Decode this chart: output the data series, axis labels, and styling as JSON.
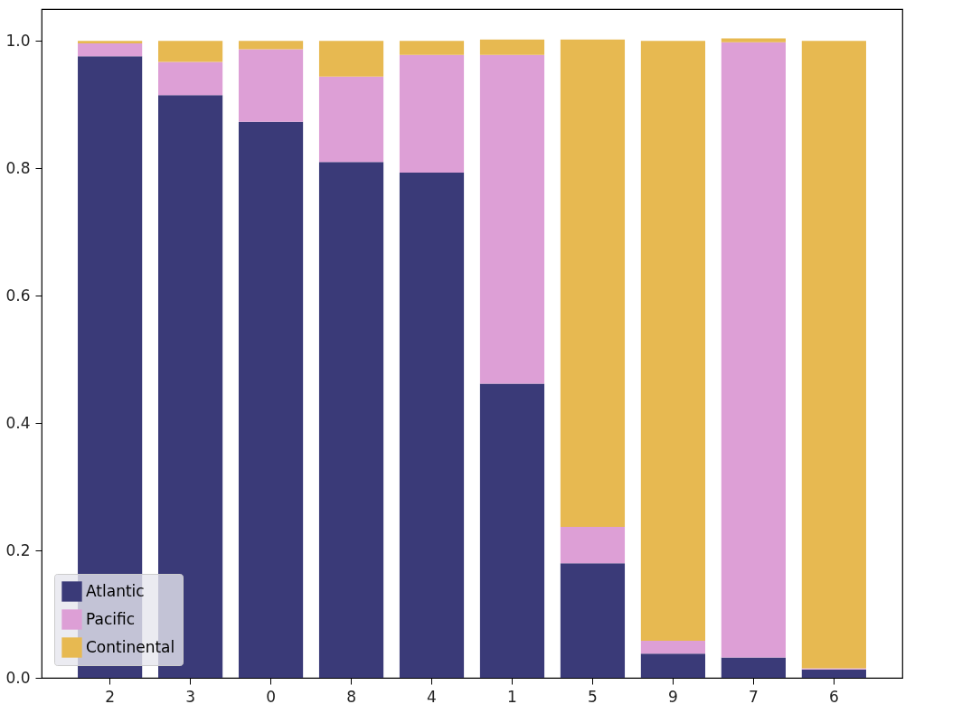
{
  "chart_data": {
    "type": "bar",
    "stacked": true,
    "categories": [
      "2",
      "3",
      "0",
      "8",
      "4",
      "1",
      "5",
      "9",
      "7",
      "6"
    ],
    "series": [
      {
        "name": "Atlantic",
        "color": "#3a3a78",
        "values": [
          0.976,
          0.915,
          0.873,
          0.81,
          0.793,
          0.462,
          0.18,
          0.038,
          0.032,
          0.013
        ]
      },
      {
        "name": "Pacific",
        "color": "#dd9fd6",
        "values": [
          0.02,
          0.052,
          0.114,
          0.134,
          0.185,
          0.516,
          0.057,
          0.02,
          0.966,
          0.002
        ]
      },
      {
        "name": "Continental",
        "color": "#e7b951",
        "values": [
          0.004,
          0.033,
          0.013,
          0.056,
          0.022,
          0.024,
          0.765,
          0.942,
          0.006,
          0.985
        ]
      }
    ],
    "ylim": [
      0,
      1.05
    ],
    "yticks": [
      {
        "value": 0,
        "label": "0.0"
      },
      0.2,
      0.4,
      0.6,
      0.8,
      {
        "value": 1,
        "label": "1.0"
      }
    ],
    "grid": false,
    "legend": "bottom left"
  }
}
